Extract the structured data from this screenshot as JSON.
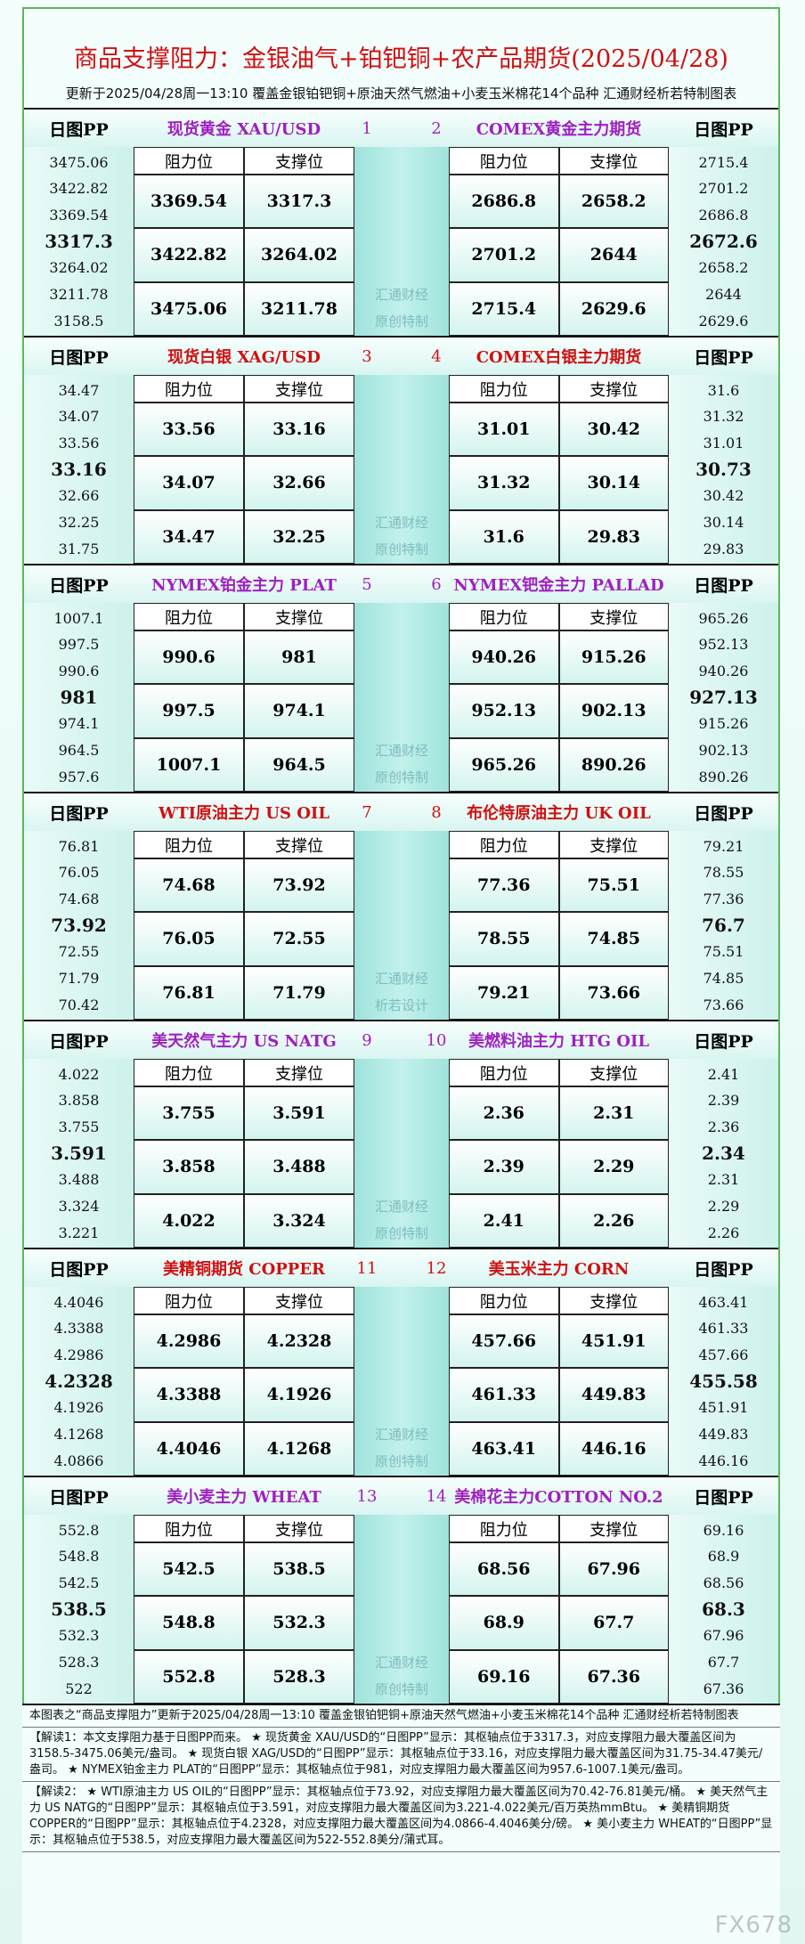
{
  "header": {
    "title": "商品支撑阻力：金银油气+铂钯铜+农产品期货(2025/04/28)",
    "subtitle": "更新于2025/04/28周一13:10 覆盖金银铂钯铜+原油天然气燃油+小麦玉米棉花14个品种 汇通财经析若特制图表"
  },
  "labels": {
    "pp": "日图PP",
    "resistance": "阻力位",
    "support": "支撑位"
  },
  "blocks": [
    {
      "color": "#a020c0",
      "watermark": [
        "汇通财经",
        "原创特制"
      ],
      "left": {
        "number": "1",
        "name": "现货黄金 XAU/USD",
        "pp": [
          "3475.06",
          "3422.82",
          "3369.54",
          "3317.3",
          "3264.02",
          "3211.78",
          "3158.5"
        ],
        "rows": [
          [
            "3369.54",
            "3317.3"
          ],
          [
            "3422.82",
            "3264.02"
          ],
          [
            "3475.06",
            "3211.78"
          ]
        ]
      },
      "right": {
        "number": "2",
        "name": "COMEX黄金主力期货",
        "pp": [
          "2715.4",
          "2701.2",
          "2686.8",
          "2672.6",
          "2658.2",
          "2644",
          "2629.6"
        ],
        "rows": [
          [
            "2686.8",
            "2658.2"
          ],
          [
            "2701.2",
            "2644"
          ],
          [
            "2715.4",
            "2629.6"
          ]
        ]
      }
    },
    {
      "color": "#d01010",
      "watermark": [
        "汇通财经",
        "原创特制"
      ],
      "left": {
        "number": "3",
        "name": "现货白银 XAG/USD",
        "pp": [
          "34.47",
          "34.07",
          "33.56",
          "33.16",
          "32.66",
          "32.25",
          "31.75"
        ],
        "rows": [
          [
            "33.56",
            "33.16"
          ],
          [
            "34.07",
            "32.66"
          ],
          [
            "34.47",
            "32.25"
          ]
        ]
      },
      "right": {
        "number": "4",
        "name": "COMEX白银主力期货",
        "pp": [
          "31.6",
          "31.32",
          "31.01",
          "30.73",
          "30.42",
          "30.14",
          "29.83"
        ],
        "rows": [
          [
            "31.01",
            "30.42"
          ],
          [
            "31.32",
            "30.14"
          ],
          [
            "31.6",
            "29.83"
          ]
        ]
      }
    },
    {
      "color": "#a020c0",
      "watermark": [
        "汇通财经",
        "原创特制"
      ],
      "left": {
        "number": "5",
        "name": "NYMEX铂金主力 PLAT",
        "pp": [
          "1007.1",
          "997.5",
          "990.6",
          "981",
          "974.1",
          "964.5",
          "957.6"
        ],
        "rows": [
          [
            "990.6",
            "981"
          ],
          [
            "997.5",
            "974.1"
          ],
          [
            "1007.1",
            "964.5"
          ]
        ]
      },
      "right": {
        "number": "6",
        "name": "NYMEX钯金主力 PALLAD",
        "pp": [
          "965.26",
          "952.13",
          "940.26",
          "927.13",
          "915.26",
          "902.13",
          "890.26"
        ],
        "rows": [
          [
            "940.26",
            "915.26"
          ],
          [
            "952.13",
            "902.13"
          ],
          [
            "965.26",
            "890.26"
          ]
        ]
      }
    },
    {
      "color": "#d01010",
      "watermark": [
        "汇通财经",
        "析若设计"
      ],
      "left": {
        "number": "7",
        "name": "WTI原油主力 US OIL",
        "pp": [
          "76.81",
          "76.05",
          "74.68",
          "73.92",
          "72.55",
          "71.79",
          "70.42"
        ],
        "rows": [
          [
            "74.68",
            "73.92"
          ],
          [
            "76.05",
            "72.55"
          ],
          [
            "76.81",
            "71.79"
          ]
        ]
      },
      "right": {
        "number": "8",
        "name": "布伦特原油主力 UK OIL",
        "pp": [
          "79.21",
          "78.55",
          "77.36",
          "76.7",
          "75.51",
          "74.85",
          "73.66"
        ],
        "rows": [
          [
            "77.36",
            "75.51"
          ],
          [
            "78.55",
            "74.85"
          ],
          [
            "79.21",
            "73.66"
          ]
        ]
      }
    },
    {
      "color": "#a020c0",
      "watermark": [
        "汇通财经",
        "原创特制"
      ],
      "left": {
        "number": "9",
        "name": "美天然气主力 US NATG",
        "pp": [
          "4.022",
          "3.858",
          "3.755",
          "3.591",
          "3.488",
          "3.324",
          "3.221"
        ],
        "rows": [
          [
            "3.755",
            "3.591"
          ],
          [
            "3.858",
            "3.488"
          ],
          [
            "4.022",
            "3.324"
          ]
        ]
      },
      "right": {
        "number": "10",
        "name": "美燃料油主力 HTG OIL",
        "pp": [
          "2.41",
          "2.39",
          "2.36",
          "2.34",
          "2.31",
          "2.29",
          "2.26"
        ],
        "rows": [
          [
            "2.36",
            "2.31"
          ],
          [
            "2.39",
            "2.29"
          ],
          [
            "2.41",
            "2.26"
          ]
        ]
      }
    },
    {
      "color": "#d01010",
      "watermark": [
        "汇通财经",
        "原创特制"
      ],
      "left": {
        "number": "11",
        "name": "美精铜期货 COPPER",
        "pp": [
          "4.4046",
          "4.3388",
          "4.2986",
          "4.2328",
          "4.1926",
          "4.1268",
          "4.0866"
        ],
        "rows": [
          [
            "4.2986",
            "4.2328"
          ],
          [
            "4.3388",
            "4.1926"
          ],
          [
            "4.4046",
            "4.1268"
          ]
        ]
      },
      "right": {
        "number": "12",
        "name": "美玉米主力 CORN",
        "pp": [
          "463.41",
          "461.33",
          "457.66",
          "455.58",
          "451.91",
          "449.83",
          "446.16"
        ],
        "rows": [
          [
            "457.66",
            "451.91"
          ],
          [
            "461.33",
            "449.83"
          ],
          [
            "463.41",
            "446.16"
          ]
        ]
      }
    },
    {
      "color": "#a020c0",
      "watermark": [
        "汇通财经",
        "原创特制"
      ],
      "left": {
        "number": "13",
        "name": "美小麦主力 WHEAT",
        "pp": [
          "552.8",
          "548.8",
          "542.5",
          "538.5",
          "532.3",
          "528.3",
          "522"
        ],
        "rows": [
          [
            "542.5",
            "538.5"
          ],
          [
            "548.8",
            "532.3"
          ],
          [
            "552.8",
            "528.3"
          ]
        ]
      },
      "right": {
        "number": "14",
        "name": "美棉花主力COTTON NO.2",
        "pp": [
          "69.16",
          "68.9",
          "68.56",
          "68.3",
          "67.96",
          "67.7",
          "67.36"
        ],
        "rows": [
          [
            "68.56",
            "67.96"
          ],
          [
            "68.9",
            "67.7"
          ],
          [
            "69.16",
            "67.36"
          ]
        ]
      }
    }
  ],
  "footer": {
    "summary": "本图表之“商品支撑阻力”更新于2025/04/28周一13:10 覆盖金银铂钯铜+原油天然气燃油+小麦玉米棉花14个品种 汇通财经析若特制图表",
    "notes": [
      "【解读1：本文支撑阻力基于日图PP而来。 ★ 现货黄金 XAU/USD的“日图PP”显示：其枢轴点位于3317.3，对应支撑阻力最大覆盖区间为3158.5-3475.06美元/盎司。 ★ 现货白银 XAG/USD的“日图PP”显示：其枢轴点位于33.16，对应支撑阻力最大覆盖区间为31.75-34.47美元/盎司。 ★ NYMEX铂金主力 PLAT的“日图PP”显示：其枢轴点位于981，对应支撑阻力最大覆盖区间为957.6-1007.1美元/盎司。",
      "【解读2： ★ WTI原油主力 US OIL的“日图PP”显示：其枢轴点位于73.92，对应支撑阻力最大覆盖区间为70.42-76.81美元/桶。 ★ 美天然气主力 US NATG的“日图PP”显示：其枢轴点位于3.591，对应支撑阻力最大覆盖区间为3.221-4.022美元/百万英热mmBtu。 ★ 美精铜期货 COPPER的“日图PP”显示：其枢轴点位于4.2328，对应支撑阻力最大覆盖区间为4.0866-4.4046美分/磅。 ★ 美小麦主力 WHEAT的“日图PP”显示：其枢轴点位于538.5，对应支撑阻力最大覆盖区间为522-552.8美分/蒲式耳。"
    ]
  },
  "watermark": "FX678"
}
